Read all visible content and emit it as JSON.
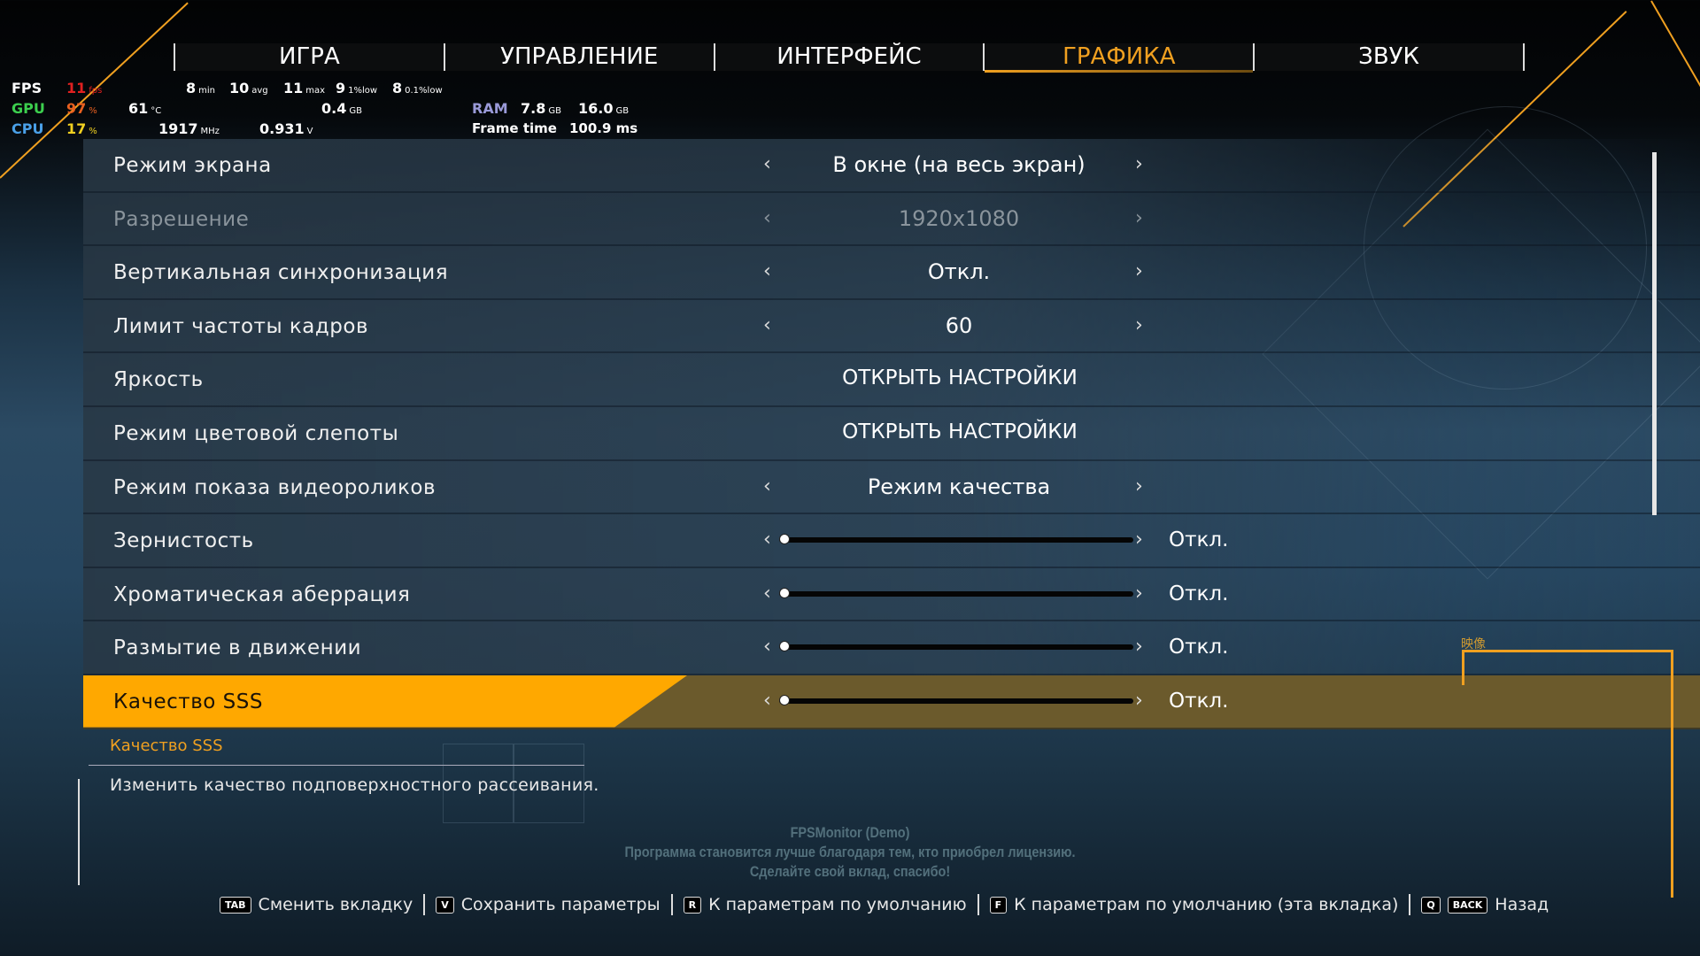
{
  "tabs": [
    {
      "label": "ИГРА"
    },
    {
      "label": "УПРАВЛЕНИЕ"
    },
    {
      "label": "ИНТЕРФЕЙС"
    },
    {
      "label": "ГРАФИКА",
      "active": true
    },
    {
      "label": "ЗВУК"
    }
  ],
  "overlay": {
    "fps": {
      "label": "FPS",
      "value": "11",
      "unit": "fps",
      "min": "8",
      "min_u": "min",
      "avg": "10",
      "avg_u": "avg",
      "max": "11",
      "max_u": "max",
      "low1": "9",
      "low1_u": "1%low",
      "low01": "8",
      "low01_u": "0.1%low"
    },
    "gpu": {
      "label": "GPU",
      "load": "97",
      "load_u": "%",
      "temp": "61",
      "temp_u": "°C",
      "mem": "0.4",
      "mem_u": "GB"
    },
    "cpu": {
      "label": "CPU",
      "load": "17",
      "load_u": "%",
      "clock": "1917",
      "clock_u": "MHz",
      "volt": "0.931",
      "volt_u": "V"
    },
    "ram": {
      "label": "RAM",
      "used": "7.8",
      "used_u": "GB",
      "total": "16.0",
      "total_u": "GB"
    },
    "frametime": {
      "label": "Frame time",
      "value": "100.9 ms"
    }
  },
  "settings": [
    {
      "label": "Режим экрана",
      "type": "select",
      "value": "В окне (на весь экран)"
    },
    {
      "label": "Разрешение",
      "type": "select",
      "value": "1920x1080",
      "disabled": true
    },
    {
      "label": "Вертикальная синхронизация",
      "type": "select",
      "value": "Откл."
    },
    {
      "label": "Лимит частоты кадров",
      "type": "select",
      "value": "60"
    },
    {
      "label": "Яркость",
      "type": "button",
      "value": "ОТКРЫТЬ НАСТРОЙКИ"
    },
    {
      "label": "Режим цветовой слепоты",
      "type": "button",
      "value": "ОТКРЫТЬ НАСТРОЙКИ"
    },
    {
      "label": "Режим показа видеороликов",
      "type": "select",
      "value": "Режим качества"
    },
    {
      "label": "Зернистость",
      "type": "slider",
      "level": 0,
      "value": "Откл."
    },
    {
      "label": "Хроматическая аберрация",
      "type": "slider",
      "level": 0,
      "value": "Откл."
    },
    {
      "label": "Размытие в движении",
      "type": "slider",
      "level": 0,
      "value": "Откл."
    },
    {
      "label": "Качество SSS",
      "type": "slider",
      "level": 0,
      "value": "Откл.",
      "selected": true
    }
  ],
  "description": {
    "title": "Качество SSS",
    "text": "Изменить качество подповерхностного рассеивания."
  },
  "section_tag": "映像",
  "watermark": {
    "line1": "FPSMonitor (Demo)",
    "line2": "Программа становится лучше благодаря тем, кто приобрел лицензию.",
    "line3": "Сделайте свой вклад, спасибо!"
  },
  "footer": [
    {
      "keys": [
        "TAB"
      ],
      "label": "Сменить вкладку"
    },
    {
      "keys": [
        "V"
      ],
      "label": "Сохранить параметры"
    },
    {
      "keys": [
        "R"
      ],
      "label": "К параметрам по умолчанию"
    },
    {
      "keys": [
        "F"
      ],
      "label": "К параметрам по умолчанию (эта вкладка)"
    },
    {
      "keys": [
        "Q",
        "BACK"
      ],
      "label": "Назад"
    }
  ],
  "colors": {
    "accent": "#ffa800",
    "selected_row": "#6b5a2c",
    "fps": "#e02020",
    "gpu": "#3ccf4e",
    "cpu": "#4aa0e8",
    "ram": "#9a9ad8"
  }
}
